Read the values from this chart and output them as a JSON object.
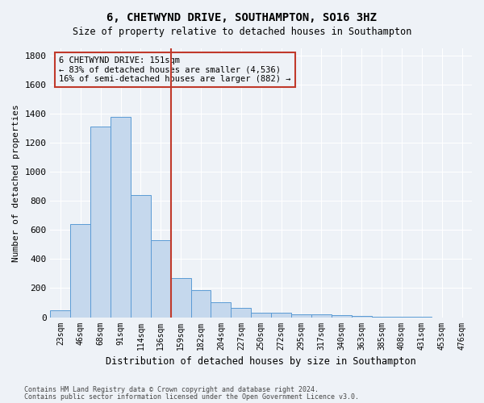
{
  "title": "6, CHETWYND DRIVE, SOUTHAMPTON, SO16 3HZ",
  "subtitle": "Size of property relative to detached houses in Southampton",
  "xlabel": "Distribution of detached houses by size in Southampton",
  "ylabel": "Number of detached properties",
  "bar_labels": [
    "23sqm",
    "46sqm",
    "68sqm",
    "91sqm",
    "114sqm",
    "136sqm",
    "159sqm",
    "182sqm",
    "204sqm",
    "227sqm",
    "250sqm",
    "272sqm",
    "295sqm",
    "317sqm",
    "340sqm",
    "363sqm",
    "385sqm",
    "408sqm",
    "431sqm",
    "453sqm",
    "476sqm"
  ],
  "bar_values": [
    50,
    640,
    1310,
    1380,
    840,
    530,
    270,
    185,
    105,
    65,
    30,
    30,
    20,
    20,
    15,
    10,
    5,
    5,
    5,
    0,
    0
  ],
  "bar_color": "#c5d8ed",
  "bar_edge_color": "#5b9bd5",
  "ylim": [
    0,
    1850
  ],
  "yticks": [
    0,
    200,
    400,
    600,
    800,
    1000,
    1200,
    1400,
    1600,
    1800
  ],
  "vline_x_index": 5.5,
  "vline_color": "#c0392b",
  "annotation_text": "6 CHETWYND DRIVE: 151sqm\n← 83% of detached houses are smaller (4,536)\n16% of semi-detached houses are larger (882) →",
  "annotation_box_color": "#c0392b",
  "footnote1": "Contains HM Land Registry data © Crown copyright and database right 2024.",
  "footnote2": "Contains public sector information licensed under the Open Government Licence v3.0.",
  "background_color": "#eef2f7",
  "grid_color": "#ffffff"
}
